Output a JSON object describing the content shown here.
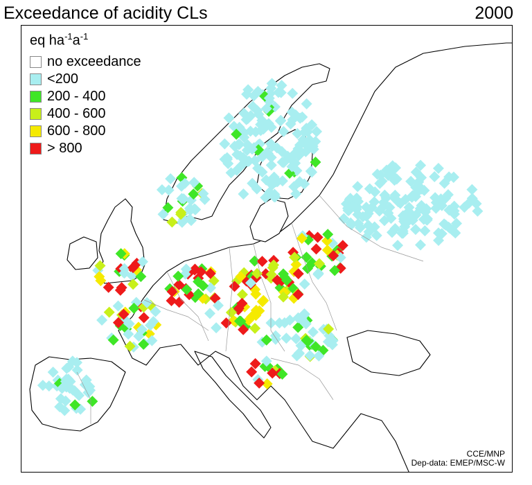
{
  "title": "Exceedance of acidity CLs",
  "year": "2000",
  "legend": {
    "unit_base": "eq ha",
    "unit_exp1": "-1",
    "unit_mid": "a",
    "unit_exp2": "-1",
    "items": [
      {
        "label": "no exceedance",
        "color": "#ffffff"
      },
      {
        "label": "<200",
        "color": "#a8eef0"
      },
      {
        "label": "200 - 400",
        "color": "#3fe627"
      },
      {
        "label": "400 - 600",
        "color": "#c8f01a"
      },
      {
        "label": "600 - 800",
        "color": "#f5ea00"
      },
      {
        "label": "> 800",
        "color": "#ee1a1a"
      }
    ]
  },
  "credits": {
    "line1": "CCE/MNP",
    "line2": "Dep-data: EMEP/MSC-W"
  }
}
